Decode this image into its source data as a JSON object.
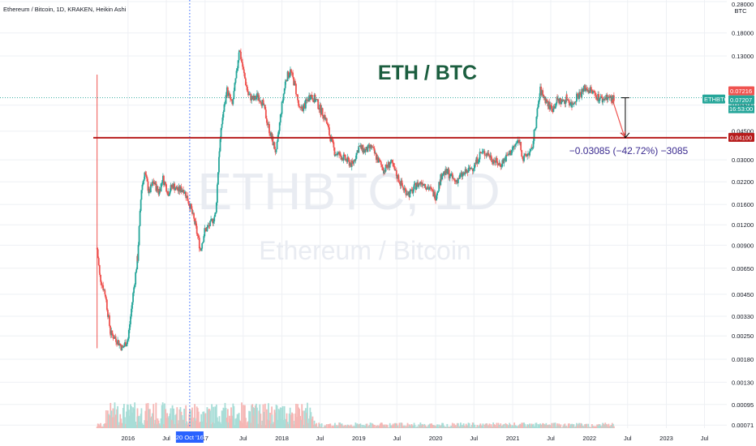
{
  "symbol_title": "Ethereum / Bitcoin, 1D, KRAKEN, Heikin Ashi",
  "chart_data": {
    "type": "candlestick",
    "title": "ETH / BTC",
    "watermark_symbol": "ETHBTC, 1D",
    "watermark_name": "Ethereum / Bitcoin",
    "y_scale": "log",
    "y_unit": "BTC",
    "ylim": [
      0.00068,
      0.28
    ],
    "y_ticks": [
      {
        "value": 0.28,
        "label": "0.28000"
      },
      {
        "value": 0.18,
        "label": "0.18000"
      },
      {
        "value": 0.13,
        "label": "0.13000"
      },
      {
        "value": 0.065,
        "label": "0.06500"
      },
      {
        "value": 0.045,
        "label": "0.04500"
      },
      {
        "value": 0.03,
        "label": "0.03000"
      },
      {
        "value": 0.022,
        "label": "0.02200"
      },
      {
        "value": 0.016,
        "label": "0.01600"
      },
      {
        "value": 0.012,
        "label": "0.01200"
      },
      {
        "value": 0.009,
        "label": "0.00900"
      },
      {
        "value": 0.0065,
        "label": "0.00650"
      },
      {
        "value": 0.0045,
        "label": "0.00450"
      },
      {
        "value": 0.0033,
        "label": "0.00330"
      },
      {
        "value": 0.0025,
        "label": "0.00250"
      },
      {
        "value": 0.0018,
        "label": "0.00180"
      },
      {
        "value": 0.0013,
        "label": "0.00130"
      },
      {
        "value": 0.00095,
        "label": "0.00095"
      },
      {
        "value": 0.00071,
        "label": "0.00071"
      }
    ],
    "x_ticks": [
      {
        "date": "2016-01-01",
        "label": "2016"
      },
      {
        "date": "2016-07-01",
        "label": "Jul"
      },
      {
        "date": "2017-01-01",
        "label": "17"
      },
      {
        "date": "2017-07-01",
        "label": "Jul"
      },
      {
        "date": "2018-01-01",
        "label": "2018"
      },
      {
        "date": "2018-07-01",
        "label": "Jul"
      },
      {
        "date": "2019-01-01",
        "label": "2019"
      },
      {
        "date": "2019-07-01",
        "label": "Jul"
      },
      {
        "date": "2020-01-01",
        "label": "2020"
      },
      {
        "date": "2020-07-01",
        "label": "Jul"
      },
      {
        "date": "2021-01-01",
        "label": "2021"
      },
      {
        "date": "2021-07-01",
        "label": "Jul"
      },
      {
        "date": "2022-01-01",
        "label": "2022"
      },
      {
        "date": "2022-07-01",
        "label": "Jul"
      },
      {
        "date": "2023-01-01",
        "label": "2023"
      },
      {
        "date": "2023-07-01",
        "label": "Jul"
      }
    ],
    "xlim": [
      "2015-07-20",
      "2023-10-15"
    ],
    "crosshair": {
      "date": "2016-10-20",
      "label": "20 Oct '16"
    },
    "horizontal_line": {
      "value": 0.041,
      "label": "0.04100",
      "color": "#b71c1c"
    },
    "current_price": {
      "symbol": "ETHBTC",
      "value": 0.07207,
      "label": "0.07207",
      "countdown": "16:53:00",
      "color": "#26a69a"
    },
    "price_high_badge": {
      "value": 0.07216,
      "label": "0.07216",
      "color": "#ef5350"
    },
    "measure": {
      "text": "−0.03085 (−42.72%) −3085",
      "from_date": "2022-06-20",
      "from_value": 0.07207,
      "to_value": 0.041,
      "arrow_from_date": "2022-04-20",
      "arrow_to_date": "2022-06-15"
    },
    "colors": {
      "up": "#26a69a",
      "down": "#ef5350",
      "volume_up": "#a8ddd7",
      "volume_down": "#f5b7b5"
    },
    "series": [
      {
        "name": "ETHBTC",
        "points": [
          [
            "2015-08-07",
            0.0085
          ],
          [
            "2015-08-20",
            0.0058
          ],
          [
            "2015-09-15",
            0.0045
          ],
          [
            "2015-10-10",
            0.0026
          ],
          [
            "2015-11-05",
            0.0024
          ],
          [
            "2015-12-05",
            0.0021
          ],
          [
            "2016-01-01",
            0.0024
          ],
          [
            "2016-01-25",
            0.0045
          ],
          [
            "2016-02-15",
            0.0075
          ],
          [
            "2016-03-05",
            0.02
          ],
          [
            "2016-03-20",
            0.025
          ],
          [
            "2016-04-10",
            0.019
          ],
          [
            "2016-05-01",
            0.022
          ],
          [
            "2016-05-25",
            0.019
          ],
          [
            "2016-06-15",
            0.023
          ],
          [
            "2016-07-10",
            0.019
          ],
          [
            "2016-08-01",
            0.021
          ],
          [
            "2016-08-25",
            0.0195
          ],
          [
            "2016-09-20",
            0.02
          ],
          [
            "2016-10-20",
            0.016
          ],
          [
            "2016-11-15",
            0.012
          ],
          [
            "2016-12-10",
            0.0085
          ],
          [
            "2016-12-30",
            0.011
          ],
          [
            "2017-01-25",
            0.012
          ],
          [
            "2017-02-20",
            0.014
          ],
          [
            "2017-03-10",
            0.035
          ],
          [
            "2017-03-25",
            0.055
          ],
          [
            "2017-04-15",
            0.08
          ],
          [
            "2017-05-10",
            0.065
          ],
          [
            "2017-05-30",
            0.1
          ],
          [
            "2017-06-12",
            0.145
          ],
          [
            "2017-07-05",
            0.1
          ],
          [
            "2017-07-25",
            0.075
          ],
          [
            "2017-08-20",
            0.07
          ],
          [
            "2017-09-10",
            0.075
          ],
          [
            "2017-10-05",
            0.065
          ],
          [
            "2017-10-25",
            0.05
          ],
          [
            "2017-11-15",
            0.04
          ],
          [
            "2017-12-05",
            0.033
          ],
          [
            "2017-12-28",
            0.06
          ],
          [
            "2018-01-20",
            0.095
          ],
          [
            "2018-02-10",
            0.105
          ],
          [
            "2018-03-05",
            0.085
          ],
          [
            "2018-03-25",
            0.06
          ],
          [
            "2018-04-20",
            0.065
          ],
          [
            "2018-05-15",
            0.075
          ],
          [
            "2018-06-10",
            0.07
          ],
          [
            "2018-07-05",
            0.06
          ],
          [
            "2018-07-25",
            0.055
          ],
          [
            "2018-08-15",
            0.043
          ],
          [
            "2018-09-10",
            0.033
          ],
          [
            "2018-10-05",
            0.032
          ],
          [
            "2018-11-01",
            0.03
          ],
          [
            "2018-12-01",
            0.028
          ],
          [
            "2019-01-01",
            0.036
          ],
          [
            "2019-02-01",
            0.034
          ],
          [
            "2019-03-01",
            0.036
          ],
          [
            "2019-04-01",
            0.03
          ],
          [
            "2019-05-01",
            0.026
          ],
          [
            "2019-06-01",
            0.029
          ],
          [
            "2019-07-01",
            0.024
          ],
          [
            "2019-08-01",
            0.02
          ],
          [
            "2019-09-01",
            0.0185
          ],
          [
            "2019-10-01",
            0.021
          ],
          [
            "2019-11-01",
            0.022
          ],
          [
            "2019-12-01",
            0.02
          ],
          [
            "2020-01-01",
            0.018
          ],
          [
            "2020-02-01",
            0.025
          ],
          [
            "2020-03-01",
            0.025
          ],
          [
            "2020-04-01",
            0.022
          ],
          [
            "2020-05-01",
            0.024
          ],
          [
            "2020-06-01",
            0.0255
          ],
          [
            "2020-07-01",
            0.0275
          ],
          [
            "2020-08-01",
            0.033
          ],
          [
            "2020-09-01",
            0.033
          ],
          [
            "2020-10-01",
            0.03
          ],
          [
            "2020-11-01",
            0.028
          ],
          [
            "2020-12-01",
            0.031
          ],
          [
            "2021-01-01",
            0.035
          ],
          [
            "2021-02-01",
            0.04
          ],
          [
            "2021-02-20",
            0.03
          ],
          [
            "2021-03-15",
            0.033
          ],
          [
            "2021-04-01",
            0.034
          ],
          [
            "2021-04-20",
            0.05
          ],
          [
            "2021-05-12",
            0.08
          ],
          [
            "2021-06-01",
            0.072
          ],
          [
            "2021-06-20",
            0.065
          ],
          [
            "2021-07-10",
            0.062
          ],
          [
            "2021-08-01",
            0.07
          ],
          [
            "2021-08-25",
            0.068
          ],
          [
            "2021-09-15",
            0.072
          ],
          [
            "2021-10-10",
            0.065
          ],
          [
            "2021-11-01",
            0.074
          ],
          [
            "2021-11-25",
            0.078
          ],
          [
            "2021-12-10",
            0.083
          ],
          [
            "2022-01-05",
            0.08
          ],
          [
            "2022-01-25",
            0.076
          ],
          [
            "2022-02-15",
            0.072
          ],
          [
            "2022-03-05",
            0.07
          ],
          [
            "2022-03-25",
            0.074
          ],
          [
            "2022-04-15",
            0.07
          ],
          [
            "2022-05-01",
            0.072
          ]
        ]
      }
    ]
  }
}
